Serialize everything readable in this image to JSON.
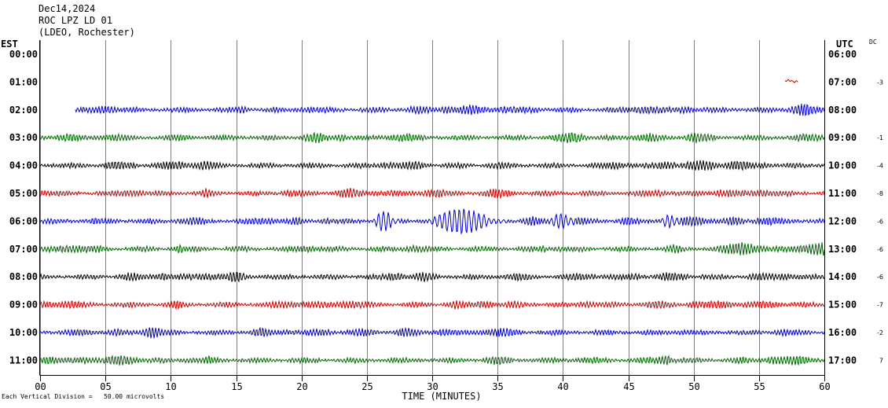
{
  "header": {
    "date": "Dec14,2024",
    "station": "ROC LPZ LD 01",
    "network": "(LDEO, Rochester)"
  },
  "left_axis_title": "EST",
  "right_axis_title": "UTC",
  "dc_title": "DC",
  "footer": {
    "scale_note": "Each Vertical Division =   50.00 microvolts"
  },
  "colors": {
    "blue": "#0000c8",
    "green": "#006400",
    "black": "#000000",
    "red": "#c80000",
    "grid": "#808080"
  },
  "chart_data": {
    "type": "line",
    "xlabel": "TIME (MINUTES)",
    "xlim": [
      0,
      60
    ],
    "x_ticks": [
      "00",
      "05",
      "10",
      "15",
      "20",
      "25",
      "30",
      "35",
      "40",
      "45",
      "50",
      "55",
      "60"
    ],
    "rows": [
      {
        "est": "00:00",
        "utc": "06:00",
        "dc": "",
        "color": "",
        "start": null,
        "end": null
      },
      {
        "est": "01:00",
        "utc": "07:00",
        "dc": "-3",
        "color": "red",
        "start": 57.0,
        "end": 58.0
      },
      {
        "est": "02:00",
        "utc": "08:00",
        "dc": "",
        "color": "blue",
        "start": 2.7,
        "end": 60
      },
      {
        "est": "03:00",
        "utc": "09:00",
        "dc": "-1",
        "color": "green",
        "start": 0,
        "end": 60
      },
      {
        "est": "04:00",
        "utc": "10:00",
        "dc": "-4",
        "color": "black",
        "start": 0,
        "end": 60
      },
      {
        "est": "05:00",
        "utc": "11:00",
        "dc": "-8",
        "color": "red",
        "start": 0,
        "end": 60
      },
      {
        "est": "06:00",
        "utc": "12:00",
        "dc": "-6",
        "color": "blue",
        "start": 0,
        "end": 60
      },
      {
        "est": "07:00",
        "utc": "13:00",
        "dc": "-6",
        "color": "green",
        "start": 0,
        "end": 60
      },
      {
        "est": "08:00",
        "utc": "14:00",
        "dc": "-6",
        "color": "black",
        "start": 0,
        "end": 60
      },
      {
        "est": "09:00",
        "utc": "15:00",
        "dc": "-7",
        "color": "red",
        "start": 0,
        "end": 60
      },
      {
        "est": "10:00",
        "utc": "16:00",
        "dc": "-2",
        "color": "blue",
        "start": 0,
        "end": 60
      },
      {
        "est": "11:00",
        "utc": "17:00",
        "dc": "7",
        "color": "green",
        "start": 0,
        "end": 60
      }
    ],
    "events": [
      {
        "row": 6,
        "start": 25.5,
        "end": 27.5,
        "amp": 2.8
      },
      {
        "row": 6,
        "start": 29.8,
        "end": 35.8,
        "amp": 3.5
      },
      {
        "row": 6,
        "start": 39.0,
        "end": 41.0,
        "amp": 2.0
      },
      {
        "row": 6,
        "start": 47.5,
        "end": 49.0,
        "amp": 1.5
      }
    ]
  }
}
